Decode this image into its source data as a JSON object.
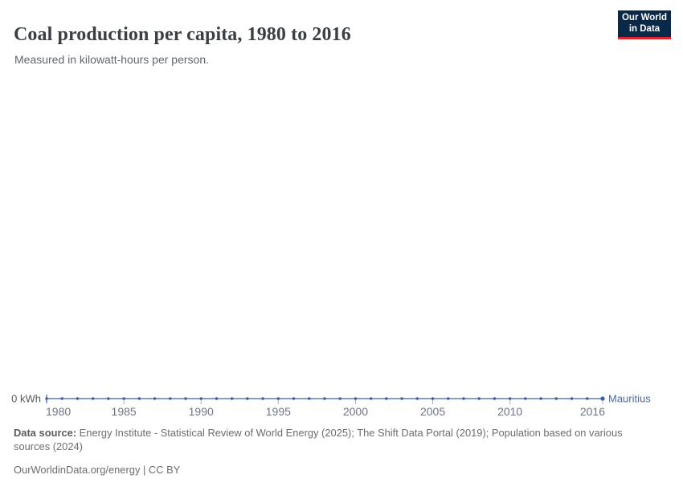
{
  "header": {
    "title": "Coal production per capita, 1980 to 2016",
    "subtitle": "Measured in kilowatt-hours per person."
  },
  "logo": {
    "line1": "Our World",
    "line2": "in Data",
    "bg_color": "#0a2848",
    "accent_color": "#e0262c"
  },
  "chart_data": {
    "type": "line",
    "title": "Coal production per capita, 1980 to 2016",
    "subtitle": "Measured in kilowatt-hours per person.",
    "unit": "kWh",
    "xlabel": "",
    "ylabel": "",
    "xlim": [
      1980,
      2016
    ],
    "ylim": [
      0,
      0
    ],
    "grid": false,
    "legend_position": "right-of-line-end",
    "y_zero_label": "0 kWh",
    "x": [
      1980,
      1981,
      1982,
      1983,
      1984,
      1985,
      1986,
      1987,
      1988,
      1989,
      1990,
      1991,
      1992,
      1993,
      1994,
      1995,
      1996,
      1997,
      1998,
      1999,
      2000,
      2001,
      2002,
      2003,
      2004,
      2005,
      2006,
      2007,
      2008,
      2009,
      2010,
      2011,
      2012,
      2013,
      2014,
      2015,
      2016
    ],
    "x_ticks": [
      1980,
      1985,
      1990,
      1995,
      2000,
      2005,
      2010,
      2016
    ],
    "series": [
      {
        "name": "Mauritius",
        "color": "#4C6A9C",
        "values": [
          0,
          0,
          0,
          0,
          0,
          0,
          0,
          0,
          0,
          0,
          0,
          0,
          0,
          0,
          0,
          0,
          0,
          0,
          0,
          0,
          0,
          0,
          0,
          0,
          0,
          0,
          0,
          0,
          0,
          0,
          0,
          0,
          0,
          0,
          0,
          0,
          0
        ]
      }
    ]
  },
  "colors": {
    "line": "#5B7DB3",
    "point": "#3E5F9D",
    "entity_label": "#4C6A9C",
    "axis_tick": "#A6B3C9",
    "tick_label": "#6E7581",
    "zero_label": "#55595E"
  },
  "footer": {
    "source_label": "Data source:",
    "source_text": " Energy Institute - Statistical Review of World Energy (2025); The Shift Data Portal (2019); Population based on various sources (2024)",
    "license_text": "OurWorldinData.org/energy | CC BY"
  }
}
